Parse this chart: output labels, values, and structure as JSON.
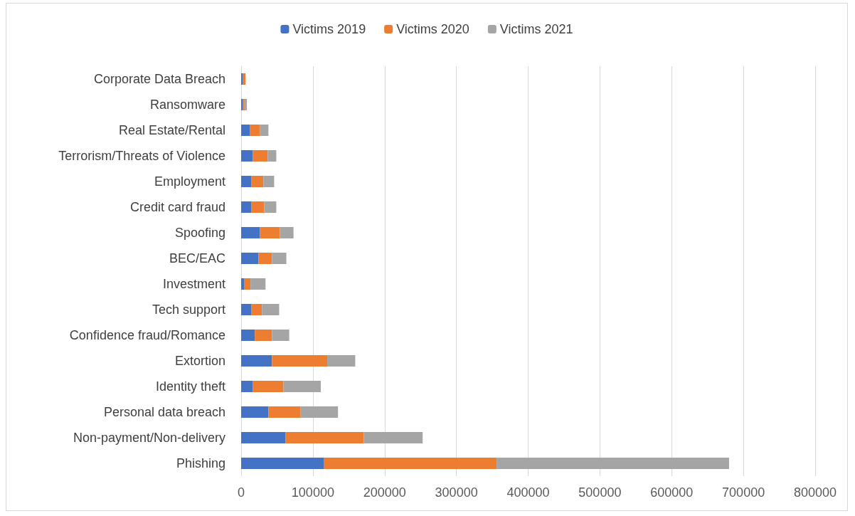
{
  "chart_data": {
    "type": "bar",
    "orientation": "horizontal",
    "stacked": true,
    "legend": "top",
    "grid": "x",
    "categories": [
      "Corporate Data Breach",
      "Ransomware",
      "Real Estate/Rental",
      "Terrorism/Threats of Violence",
      "Employment",
      "Credit card fraud",
      "Spoofing",
      "BEC/EAC",
      "Investment",
      "Tech support",
      "Confidence fraud/Romance",
      "Extortion",
      "Identity theft",
      "Personal data breach",
      "Non-payment/Non-delivery",
      "Phishing"
    ],
    "xlim": [
      0,
      800000
    ],
    "xticks": [
      0,
      100000,
      200000,
      300000,
      400000,
      500000,
      600000,
      700000,
      800000
    ],
    "series": [
      {
        "name": "Victims 2019",
        "color": "#4472c4",
        "values": [
          2000,
          2000,
          12000,
          16000,
          14000,
          14000,
          26000,
          24000,
          4000,
          14000,
          19000,
          43000,
          16000,
          38000,
          62000,
          115000
        ]
      },
      {
        "name": "Victims 2020",
        "color": "#ed7d31",
        "values": [
          4000,
          2000,
          14000,
          21000,
          17000,
          18000,
          28000,
          19000,
          9000,
          15000,
          24000,
          77000,
          43000,
          45000,
          109000,
          241000
        ]
      },
      {
        "name": "Victims 2021",
        "color": "#a5a5a5",
        "values": [
          null,
          4000,
          12000,
          12000,
          15000,
          17000,
          19000,
          20000,
          21000,
          24000,
          24000,
          39000,
          52000,
          52000,
          82000,
          324000
        ]
      }
    ]
  }
}
